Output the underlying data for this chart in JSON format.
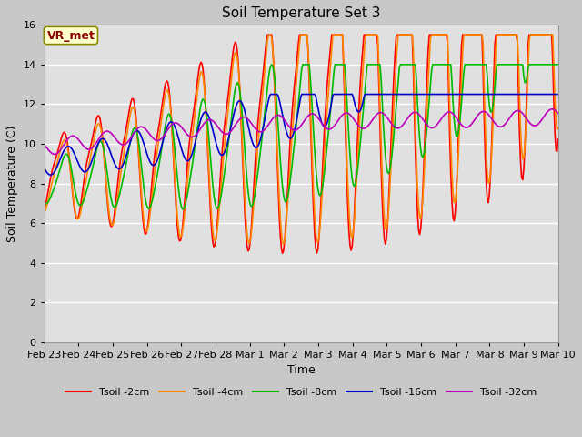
{
  "title": "Soil Temperature Set 3",
  "xlabel": "Time",
  "ylabel": "Soil Temperature (C)",
  "ylim": [
    0,
    16
  ],
  "yticks": [
    0,
    2,
    4,
    6,
    8,
    10,
    12,
    14,
    16
  ],
  "fig_facecolor": "#c8c8c8",
  "plot_facecolor": "#e0e0e0",
  "annotation_text": "VR_met",
  "annotation_box_color": "#ffffcc",
  "annotation_text_color": "#8b0000",
  "series_colors": [
    "#ff0000",
    "#ff8800",
    "#00bb00",
    "#0000cc",
    "#bb00bb"
  ],
  "series_labels": [
    "Tsoil -2cm",
    "Tsoil -4cm",
    "Tsoil -8cm",
    "Tsoil -16cm",
    "Tsoil -32cm"
  ],
  "xtick_labels": [
    "Feb 23",
    "Feb 24",
    "Feb 25",
    "Feb 26",
    "Feb 27",
    "Feb 28",
    "Mar 1",
    "Mar 2",
    "Mar 3",
    "Mar 4",
    "Mar 5",
    "Mar 6",
    "Mar 7",
    "Mar 8",
    "Mar 9",
    "Mar 10"
  ],
  "num_points": 480
}
